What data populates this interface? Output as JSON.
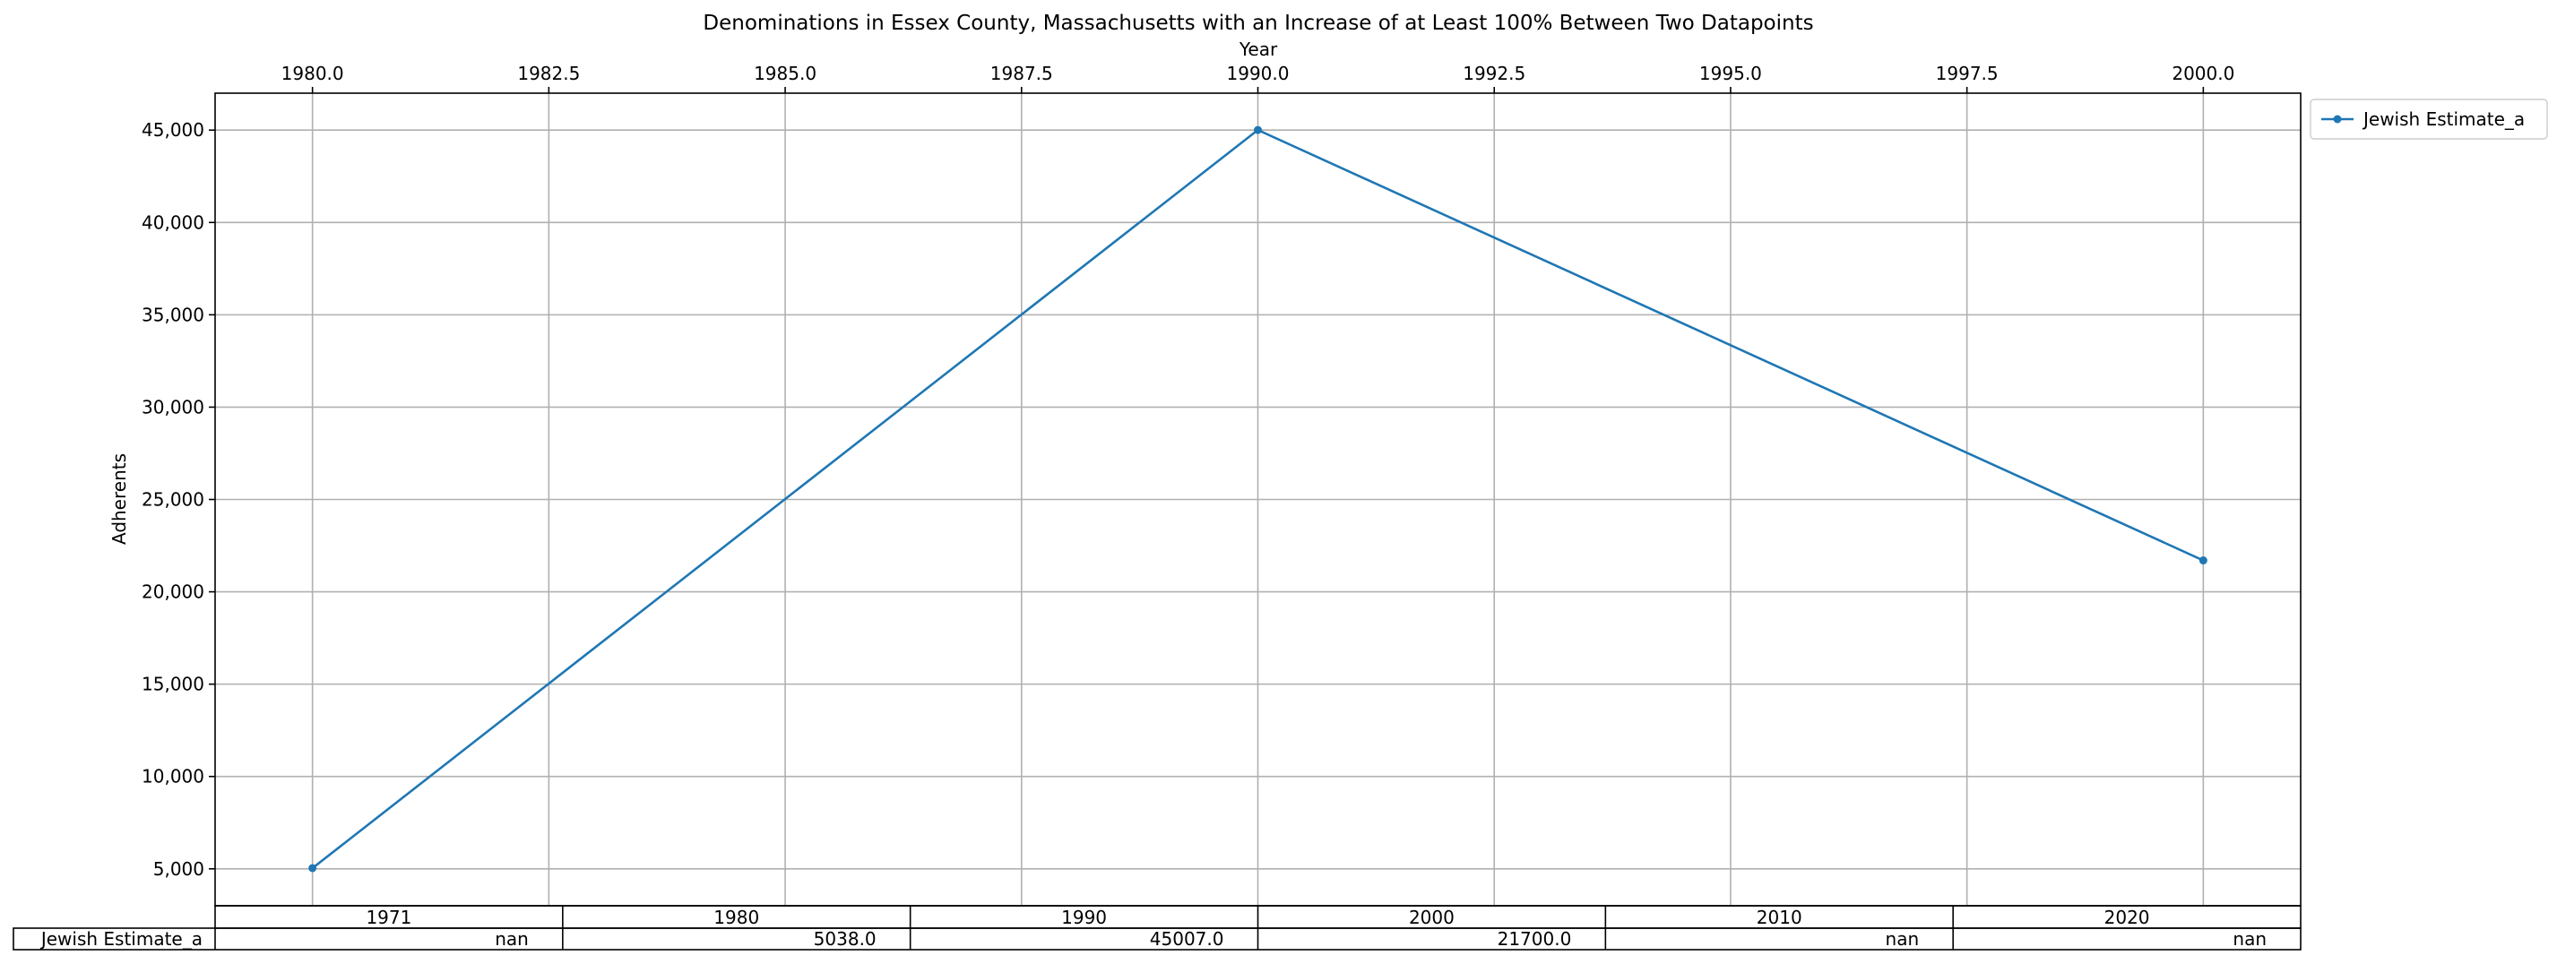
{
  "chart_data": {
    "type": "line",
    "title": "Denominations in Essex County, Massachusetts with an Increase of at Least 100% Between Two Datapoints",
    "xlabel": "Year",
    "ylabel": "Adherents",
    "xlim": [
      1978.97,
      2001.03
    ],
    "ylim": [
      3000,
      47000
    ],
    "x_ticks": [
      1980.0,
      1982.5,
      1985.0,
      1987.5,
      1990.0,
      1992.5,
      1995.0,
      1997.5,
      2000.0
    ],
    "x_tick_labels": [
      "1980.0",
      "1982.5",
      "1985.0",
      "1987.5",
      "1990.0",
      "1992.5",
      "1995.0",
      "1997.5",
      "2000.0"
    ],
    "y_ticks": [
      5000,
      10000,
      15000,
      20000,
      25000,
      30000,
      35000,
      40000,
      45000
    ],
    "y_tick_labels": [
      "5,000",
      "10,000",
      "15,000",
      "20,000",
      "25,000",
      "30,000",
      "35,000",
      "40,000",
      "45,000"
    ],
    "x_axis_position": "top",
    "grid": true,
    "legend_position": "outside-top-right",
    "colors": {
      "series": "#1f77b4",
      "grid": "#b0b0b0"
    },
    "series": [
      {
        "name": "Jewish Estimate_a",
        "x": [
          1980,
          1990,
          2000
        ],
        "y": [
          5038,
          45007,
          21700
        ]
      }
    ],
    "table": {
      "columns": [
        "1971",
        "1980",
        "1990",
        "2000",
        "2010",
        "2020"
      ],
      "rows": [
        {
          "label": "Jewish Estimate_a",
          "cells": [
            "nan",
            "5038.0",
            "45007.0",
            "21700.0",
            "nan",
            "nan"
          ]
        }
      ]
    }
  }
}
